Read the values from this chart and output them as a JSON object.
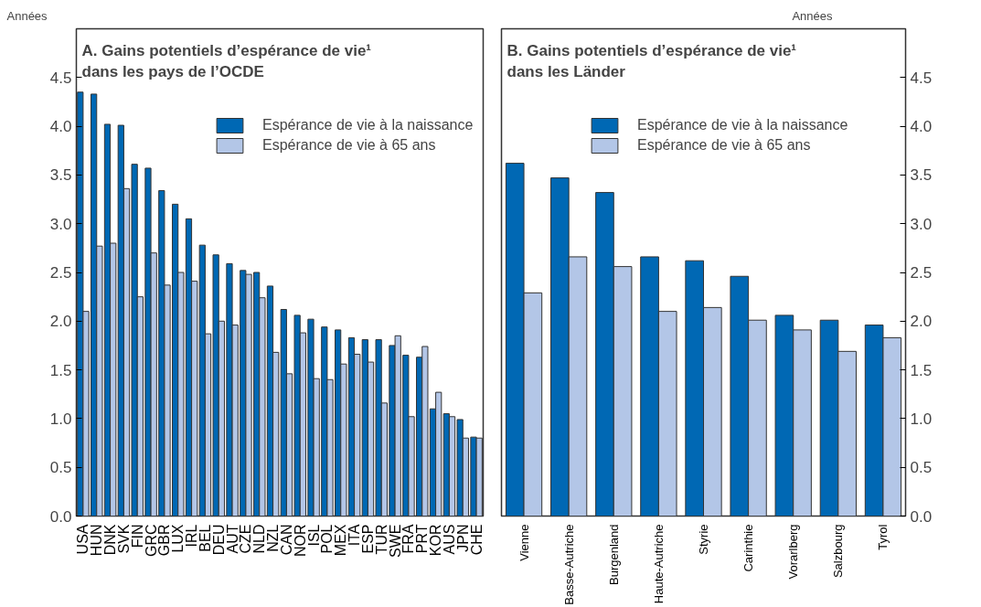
{
  "chart_data": [
    {
      "type": "bar",
      "title": "A. Gains potentiels d’espérance de vie¹\ndans les pays de l’OCDE",
      "ylabel": "Années",
      "categories": [
        "USA",
        "HUN",
        "DNK",
        "SVK",
        "FIN",
        "GRC",
        "GBR",
        "LUX",
        "IRL",
        "BEL",
        "DEU",
        "AUT",
        "CZE",
        "NLD",
        "NZL",
        "CAN",
        "NOR",
        "ISL",
        "POL",
        "MEX",
        "ITA",
        "ESP",
        "TUR",
        "SWE",
        "FRA",
        "PRT",
        "KOR",
        "AUS",
        "JPN",
        "CHE"
      ],
      "series": [
        {
          "name": "Espérance de vie à la naissance",
          "color": "#0068b4",
          "values": [
            4.35,
            4.33,
            4.02,
            4.01,
            3.61,
            3.57,
            3.34,
            3.2,
            3.05,
            2.78,
            2.68,
            2.59,
            2.52,
            2.5,
            2.36,
            2.12,
            2.06,
            2.02,
            1.94,
            1.91,
            1.83,
            1.81,
            1.81,
            1.75,
            1.65,
            1.63,
            1.1,
            1.05,
            0.99,
            0.81
          ]
        },
        {
          "name": "Espérance de vie à 65 ans",
          "color": "#b3c6e7",
          "values": [
            2.1,
            2.77,
            2.8,
            3.36,
            2.25,
            2.7,
            2.37,
            2.5,
            2.41,
            1.87,
            2.0,
            1.96,
            2.48,
            2.24,
            1.68,
            1.46,
            1.88,
            1.41,
            1.4,
            1.56,
            1.66,
            1.58,
            1.16,
            1.85,
            1.02,
            1.74,
            1.27,
            1.02,
            0.8,
            0.8
          ]
        }
      ],
      "ylim": [
        0,
        5
      ],
      "yticks": [
        {
          "value": 0,
          "label": "0.0"
        },
        {
          "value": 0.5,
          "label": "0.5"
        },
        {
          "value": 1.0,
          "label": "1.0"
        },
        {
          "value": 1.5,
          "label": "1.5"
        },
        {
          "value": 2.0,
          "label": "2.0"
        },
        {
          "value": 2.5,
          "label": "2.5"
        },
        {
          "value": 3.0,
          "label": "3.0"
        },
        {
          "value": 3.5,
          "label": "3.5"
        },
        {
          "value": 4.0,
          "label": "4.0"
        },
        {
          "value": 4.5,
          "label": "4.5"
        }
      ],
      "legend": "top right",
      "grid": false
    },
    {
      "type": "bar",
      "title": "B. Gains potentiels d’espérance de vie¹\ndans les Länder",
      "y2label": "Années",
      "categories": [
        "Vienne",
        "Basse-Autriche",
        "Burgenland",
        "Haute-Autriche",
        "Styrie",
        "Carinthie",
        "Vorarlberg",
        "Salzbourg",
        "Tyrol"
      ],
      "series": [
        {
          "name": "Espérance de vie à la naissance",
          "color": "#0068b4",
          "axis": "y2",
          "values": [
            3.62,
            3.47,
            3.32,
            2.66,
            2.62,
            2.46,
            2.06,
            2.01,
            1.96
          ]
        },
        {
          "name": "Espérance de vie à 65 ans",
          "color": "#b3c6e7",
          "axis": "y2",
          "values": [
            2.29,
            2.66,
            2.56,
            2.1,
            2.14,
            2.01,
            1.91,
            1.69,
            1.83
          ]
        }
      ],
      "y2lim": [
        0,
        5
      ],
      "y2ticks": [
        {
          "value": 0,
          "label": "0.0"
        },
        {
          "value": 0.5,
          "label": "0.5"
        },
        {
          "value": 1.0,
          "label": "1.0"
        },
        {
          "value": 1.5,
          "label": "1.5"
        },
        {
          "value": 2.0,
          "label": "2.0"
        },
        {
          "value": 2.5,
          "label": "2.5"
        },
        {
          "value": 3.0,
          "label": "3.0"
        },
        {
          "value": 3.5,
          "label": "3.5"
        },
        {
          "value": 4.0,
          "label": "4.0"
        },
        {
          "value": 4.5,
          "label": "4.5"
        }
      ],
      "legend": "top right",
      "grid": false
    }
  ]
}
